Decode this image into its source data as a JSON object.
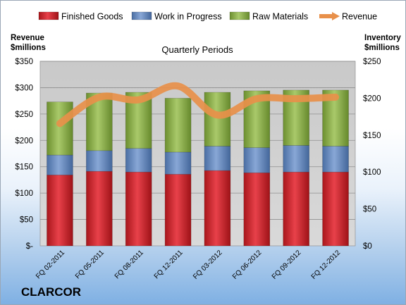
{
  "company": "CLARCOR",
  "chart_data": {
    "type": "bar",
    "stacked": true,
    "subtitle": "Quarterly Periods",
    "left_axis_title": [
      "Revenue",
      "$millions"
    ],
    "right_axis_title": [
      "Inventory",
      "$millions"
    ],
    "categories": [
      "FQ 02-2011",
      "FQ 05-2011",
      "FQ 08-2011",
      "FQ 12-2011",
      "FQ 03-2012",
      "FQ 06-2012",
      "FQ 09-2012",
      "FQ 12-2012"
    ],
    "series": [
      {
        "name": "Finished Goods",
        "axis": "right",
        "color": "#e0353b",
        "values": [
          96,
          101,
          100,
          97,
          102,
          99,
          100,
          100
        ]
      },
      {
        "name": "Work in Progress",
        "axis": "right",
        "color": "#6f93c8",
        "values": [
          27,
          28,
          32,
          30,
          33,
          34,
          36,
          35
        ]
      },
      {
        "name": "Raw Materials",
        "axis": "right",
        "color": "#9bbf55",
        "values": [
          72,
          78,
          76,
          73,
          73,
          77,
          75,
          76
        ]
      }
    ],
    "line": {
      "name": "Revenue",
      "axis": "left",
      "color": "#e8904a",
      "values": [
        232,
        282,
        277,
        303,
        248,
        279,
        279,
        282
      ]
    },
    "left_axis": {
      "min": 0,
      "max": 350,
      "step": 50,
      "ticks": [
        "$-",
        "$50",
        "$100",
        "$150",
        "$200",
        "$250",
        "$300",
        "$350"
      ]
    },
    "right_axis": {
      "min": 0,
      "max": 250,
      "step": 50,
      "ticks": [
        "$0",
        "$50",
        "$100",
        "$150",
        "$200",
        "$250"
      ]
    },
    "legend_position": "top",
    "grid": true
  }
}
